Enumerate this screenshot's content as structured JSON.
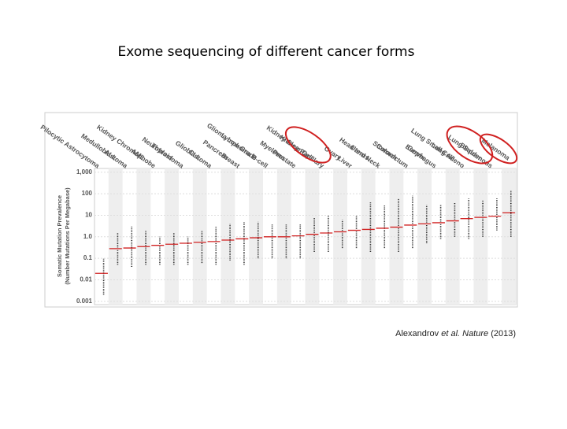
{
  "chart_data": {
    "type": "strip",
    "title": "Exome sequencing of different cancer forms",
    "ylabel": [
      "Somatic Mutation Prevalence",
      "(Number Mutations Per Megabase)"
    ],
    "categories": [
      "Pilocytic Astrocytoma",
      "ALL",
      "Medulloblastoma",
      "AML",
      "Kidney Chromophobe",
      "Thyroid",
      "Neuroblastoma",
      "CLL",
      "Glioblastoma",
      "Pancreas",
      "Breast",
      "Glioma Low Grade",
      "Lymphoma B-cell",
      "Myeloma",
      "Prostate",
      "Kidney Clear Cell",
      "Kidney Papillary",
      "Ovary",
      "Liver",
      "Uterus",
      "Head and Neck",
      "Stomach",
      "Colorectum",
      "Cervix",
      "Esophagus",
      "Lung Small Cell",
      "Lung Adeno",
      "Bladder",
      "Lung Squamous",
      "Melanoma"
    ],
    "medians": [
      0.02,
      0.28,
      0.3,
      0.35,
      0.4,
      0.45,
      0.5,
      0.55,
      0.6,
      0.7,
      0.8,
      0.9,
      1.0,
      1.0,
      1.1,
      1.3,
      1.5,
      1.7,
      2.0,
      2.2,
      2.5,
      2.8,
      3.5,
      4.0,
      4.5,
      5.5,
      7.0,
      8.0,
      9.0,
      13
    ],
    "ranges": [
      [
        0.002,
        0.1
      ],
      [
        0.05,
        1.5
      ],
      [
        0.04,
        3
      ],
      [
        0.05,
        2
      ],
      [
        0.05,
        1
      ],
      [
        0.05,
        1.5
      ],
      [
        0.05,
        1
      ],
      [
        0.06,
        2
      ],
      [
        0.05,
        3
      ],
      [
        0.08,
        4
      ],
      [
        0.05,
        5
      ],
      [
        0.1,
        5
      ],
      [
        0.1,
        4
      ],
      [
        0.1,
        4
      ],
      [
        0.1,
        4
      ],
      [
        0.2,
        8
      ],
      [
        0.2,
        10
      ],
      [
        0.3,
        6
      ],
      [
        0.3,
        10
      ],
      [
        0.2,
        40
      ],
      [
        0.3,
        30
      ],
      [
        0.2,
        60
      ],
      [
        0.3,
        80
      ],
      [
        0.5,
        30
      ],
      [
        0.8,
        30
      ],
      [
        1,
        40
      ],
      [
        0.8,
        60
      ],
      [
        1,
        50
      ],
      [
        2,
        60
      ],
      [
        1,
        150
      ]
    ],
    "mark_color": "#222222",
    "median_color": "#d02020",
    "ylim": [
      0.0007,
      1500
    ],
    "log_y": true,
    "yticks": [
      {
        "value": 1000,
        "label": "1,000"
      },
      100,
      10,
      {
        "value": 1,
        "label": "1.0"
      },
      0.1,
      0.01,
      0.001
    ],
    "annotation": [
      "Alexandrov ",
      "et al. Nature",
      " (2013)"
    ]
  }
}
